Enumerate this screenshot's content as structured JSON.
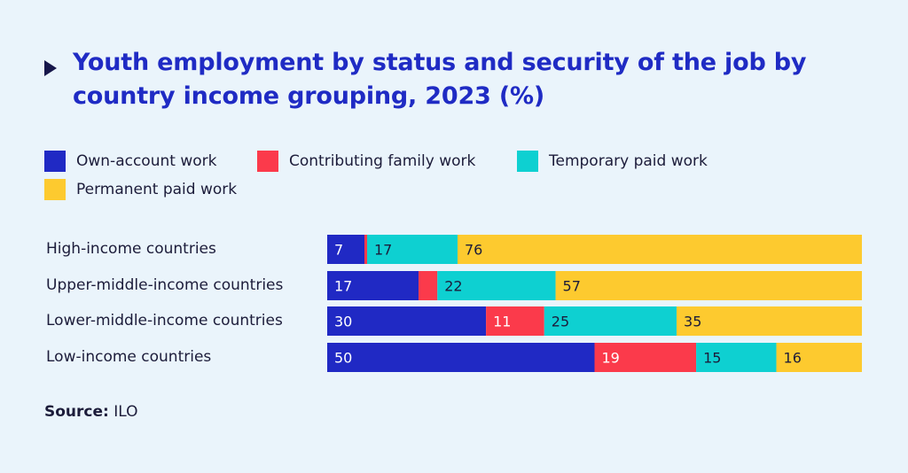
{
  "title": "Youth employment by status and security of the job by country income grouping, 2023 (%)",
  "source": {
    "label": "Source:",
    "value": "ILO"
  },
  "chart_data": {
    "type": "bar",
    "orientation": "horizontal",
    "stacked": true,
    "title": "Youth employment by status and security of the job by country income grouping, 2023 (%)",
    "categories": [
      "High-income countries",
      "Upper-middle-income countries",
      "Lower-middle-income countries",
      "Low-income countries"
    ],
    "series": [
      {
        "name": "Own-account work",
        "color": "#2029c4",
        "values": [
          7,
          17,
          30,
          50
        ],
        "label_color": "#ffffff"
      },
      {
        "name": "Contributing family work",
        "color": "#fb3a4b",
        "values": [
          0.5,
          3.5,
          11,
          19
        ],
        "label_color": "#ffffff",
        "labels": [
          "",
          "",
          "11",
          "19"
        ]
      },
      {
        "name": "Temporary paid work",
        "color": "#0ed0d1",
        "values": [
          17,
          22,
          25,
          15
        ],
        "label_color": "#1c1c3a"
      },
      {
        "name": "Permanent paid work",
        "color": "#fdca2f",
        "values": [
          76,
          57,
          35,
          16
        ],
        "label_color": "#1c1c3a"
      }
    ],
    "xlim": [
      0,
      100
    ],
    "legend_position": "top-left",
    "grid": false
  }
}
